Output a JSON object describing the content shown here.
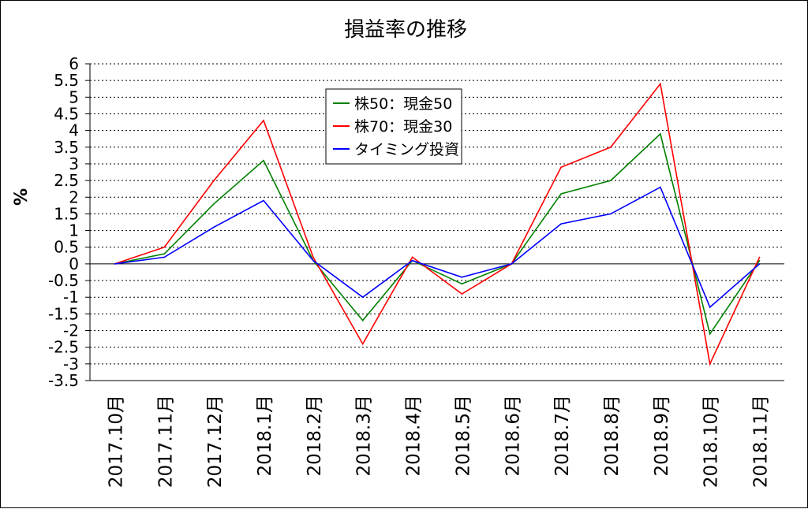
{
  "chart_data": {
    "type": "line",
    "title": "損益率の推移",
    "ylabel": "%",
    "xlabel": "",
    "categories": [
      "2017.10月",
      "2017.11月",
      "2017.12月",
      "2018.1月",
      "2018.2月",
      "2018.3月",
      "2018.4月",
      "2018.5月",
      "2018.6月",
      "2018.7月",
      "2018.8月",
      "2018.9月",
      "2018.10月",
      "2018.11月"
    ],
    "ylim": [
      -3.5,
      6
    ],
    "yticks": [
      6,
      5.5,
      5,
      4.5,
      4,
      3.5,
      3,
      2.5,
      2,
      1.5,
      1,
      0.5,
      0,
      -0.5,
      -1,
      -1.5,
      -2,
      -2.5,
      -3,
      -3.5
    ],
    "grid": "horizontal dotted",
    "legend_position": "top-center",
    "series": [
      {
        "name": "株50：現金50",
        "color": "#008000",
        "values": [
          0,
          0.3,
          1.8,
          3.1,
          0.1,
          -1.7,
          0.1,
          -0.6,
          0.0,
          2.1,
          2.5,
          3.9,
          -2.1,
          0.1
        ]
      },
      {
        "name": "株70：現金30",
        "color": "#ff0000",
        "values": [
          0,
          0.5,
          2.5,
          4.3,
          0.2,
          -2.4,
          0.2,
          -0.9,
          0.0,
          2.9,
          3.5,
          5.4,
          -3.0,
          0.2
        ]
      },
      {
        "name": "タイミング投資",
        "color": "#0000ff",
        "values": [
          0,
          0.2,
          1.1,
          1.9,
          0.1,
          -1.0,
          0.1,
          -0.4,
          0.0,
          1.2,
          1.5,
          2.3,
          -1.3,
          0.0
        ]
      }
    ]
  }
}
